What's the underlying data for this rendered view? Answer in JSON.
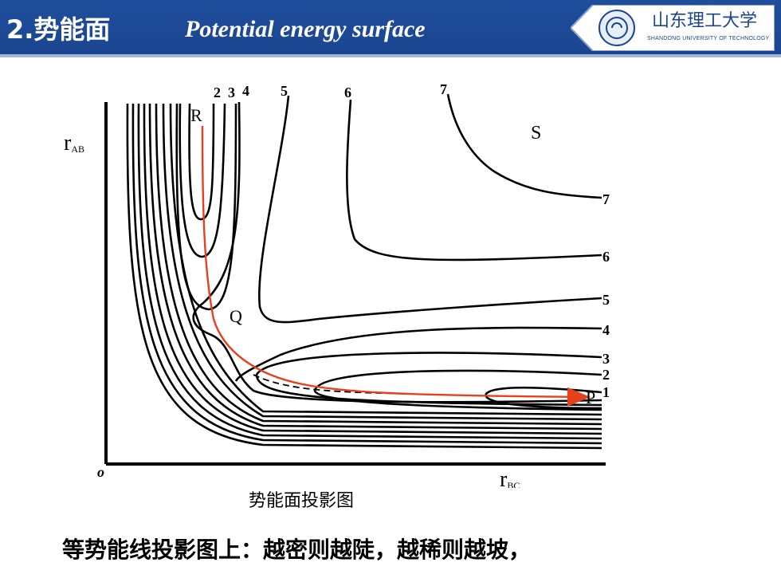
{
  "header": {
    "number_title": "2.势能面",
    "english_title": "Potential energy surface",
    "logo_text": "山东理工大学",
    "logo_subtitle": "SHANDONG UNIVERSITY OF TECHNOLOGY"
  },
  "diagram": {
    "y_axis_label": "r",
    "y_axis_sub": "AB",
    "x_axis_label": "r",
    "x_axis_sub": "BC",
    "origin_label": "o",
    "point_R": "R",
    "point_Q": "Q",
    "point_S": "S",
    "point_P": "P",
    "top_labels": [
      "2",
      "3",
      "4",
      "5",
      "6",
      "7"
    ],
    "right_labels": [
      "7",
      "6",
      "5",
      "4",
      "3",
      "2",
      "1"
    ],
    "path_color": "#e8401c",
    "contour_color": "#000000"
  },
  "caption": "势能面投影图",
  "bottom_text": "等势能线投影图上：越密则越陡，越稀则越坡，"
}
